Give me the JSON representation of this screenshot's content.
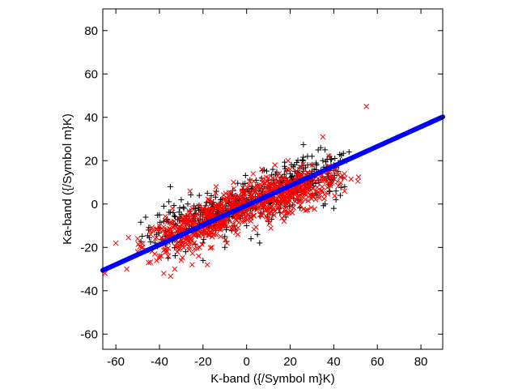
{
  "chart_data": {
    "type": "scatter",
    "title": "",
    "xlabel": "K-band ({/Symbol m}K)",
    "ylabel": "Ka-band ({/Symbol m}K)",
    "xlim": [
      -66,
      90
    ],
    "ylim": [
      -67,
      90
    ],
    "xticks": [
      -60,
      -40,
      -20,
      0,
      20,
      40,
      60,
      80
    ],
    "yticks": [
      -60,
      -40,
      -20,
      0,
      20,
      40,
      60,
      80
    ],
    "grid": false,
    "legend": "none",
    "colors": {
      "plus_series": "#000000",
      "cross_series": "#ff0000",
      "fit_line": "#0000ff"
    },
    "series": [
      {
        "marker": "plus",
        "points": [
          [
            -35,
            8
          ],
          [
            -30,
            2
          ],
          [
            -40,
            -5
          ],
          [
            -45,
            -12
          ],
          [
            -28,
            -22
          ],
          [
            -20,
            -18
          ],
          [
            -10,
            -15
          ],
          [
            -5,
            -12
          ],
          [
            0,
            -10
          ],
          [
            5,
            -14
          ],
          [
            -15,
            -10
          ],
          [
            -25,
            -8
          ],
          [
            -32,
            -15
          ],
          [
            10,
            -8
          ],
          [
            12,
            -5
          ],
          [
            15,
            -2
          ],
          [
            18,
            3
          ],
          [
            20,
            5
          ],
          [
            22,
            8
          ],
          [
            25,
            10
          ],
          [
            28,
            12
          ],
          [
            30,
            15
          ],
          [
            32,
            18
          ],
          [
            35,
            20
          ],
          [
            38,
            22
          ],
          [
            40,
            18
          ],
          [
            42,
            15
          ],
          [
            44,
            12
          ],
          [
            36,
            25
          ],
          [
            30,
            22
          ],
          [
            26,
            20
          ],
          [
            24,
            14
          ],
          [
            33,
            11
          ],
          [
            37,
            14
          ],
          [
            39,
            10
          ],
          [
            41,
            6
          ],
          [
            43,
            4
          ],
          [
            45,
            8
          ],
          [
            47,
            24
          ],
          [
            46,
            20
          ],
          [
            34,
            26
          ],
          [
            28,
            18
          ],
          [
            20,
            14
          ],
          [
            16,
            10
          ],
          [
            14,
            6
          ],
          [
            8,
            2
          ],
          [
            4,
            -2
          ],
          [
            -2,
            -4
          ],
          [
            -8,
            -6
          ],
          [
            -12,
            2
          ],
          [
            -18,
            5
          ],
          [
            -22,
            -3
          ],
          [
            -27,
            0
          ],
          [
            -38,
            -1
          ],
          [
            -42,
            -18
          ],
          [
            -36,
            -25
          ],
          [
            -20,
            -26
          ],
          [
            -10,
            -20
          ],
          [
            2,
            -16
          ],
          [
            6,
            -18
          ],
          [
            18,
            -6
          ],
          [
            38,
            6
          ],
          [
            41,
            2
          ],
          [
            40,
            -2
          ],
          [
            36,
            0
          ],
          [
            22,
            18
          ],
          [
            12,
            16
          ],
          [
            30,
            4
          ],
          [
            43,
            20
          ],
          [
            37,
            17
          ]
        ]
      },
      {
        "marker": "cross",
        "points": [
          [
            -65,
            -32
          ],
          [
            -60,
            -18
          ],
          [
            -55,
            -30
          ],
          [
            -50,
            -22
          ],
          [
            -48,
            -20
          ],
          [
            -45,
            -27
          ],
          [
            -40,
            -25
          ],
          [
            -38,
            -32
          ],
          [
            -36,
            -24
          ],
          [
            -33,
            -30
          ],
          [
            -30,
            -26
          ],
          [
            -25,
            -28
          ],
          [
            -22,
            -24
          ],
          [
            -18,
            -28
          ],
          [
            -40,
            -10
          ],
          [
            -35,
            -12
          ],
          [
            -30,
            -8
          ],
          [
            -26,
            -4
          ],
          [
            -22,
            -12
          ],
          [
            -18,
            -6
          ],
          [
            -15,
            -14
          ],
          [
            -12,
            0
          ],
          [
            -10,
            -8
          ],
          [
            -8,
            4
          ],
          [
            -5,
            -4
          ],
          [
            -2,
            6
          ],
          [
            0,
            2
          ],
          [
            2,
            -6
          ],
          [
            5,
            8
          ],
          [
            8,
            0
          ],
          [
            10,
            12
          ],
          [
            12,
            4
          ],
          [
            15,
            14
          ],
          [
            18,
            6
          ],
          [
            20,
            16
          ],
          [
            22,
            10
          ],
          [
            25,
            14
          ],
          [
            28,
            8
          ],
          [
            30,
            18
          ],
          [
            32,
            6
          ],
          [
            35,
            31
          ],
          [
            36,
            12
          ],
          [
            55,
            45
          ],
          [
            -42,
            -16
          ],
          [
            -28,
            -18
          ],
          [
            -20,
            -2
          ],
          [
            -14,
            8
          ],
          [
            -6,
            10
          ],
          [
            3,
            14
          ],
          [
            7,
            16
          ],
          [
            13,
            18
          ],
          [
            19,
            20
          ],
          [
            24,
            4
          ],
          [
            27,
            2
          ],
          [
            -4,
            -14
          ],
          [
            -9,
            -18
          ],
          [
            -16,
            -20
          ],
          [
            -24,
            -14
          ],
          [
            -32,
            -18
          ],
          [
            -44,
            -14
          ],
          [
            -50,
            -16
          ],
          [
            -34,
            -2
          ],
          [
            -26,
            6
          ],
          [
            1,
            9
          ],
          [
            11,
            -2
          ],
          [
            17,
            1
          ],
          [
            21,
            -4
          ],
          [
            -1,
            -8
          ]
        ]
      }
    ],
    "fit_line": {
      "x": [
        -66,
        90
      ],
      "y": [
        -30.6,
        40.2
      ]
    },
    "dense_cloud": {
      "plus_centers": [
        [
          -30,
          -10
        ],
        [
          -15,
          -4
        ],
        [
          0,
          2
        ],
        [
          15,
          7
        ],
        [
          30,
          12
        ]
      ],
      "cross_centers": [
        [
          -30,
          -14
        ],
        [
          -15,
          -7
        ],
        [
          0,
          0
        ],
        [
          15,
          4
        ],
        [
          28,
          8
        ]
      ]
    }
  }
}
